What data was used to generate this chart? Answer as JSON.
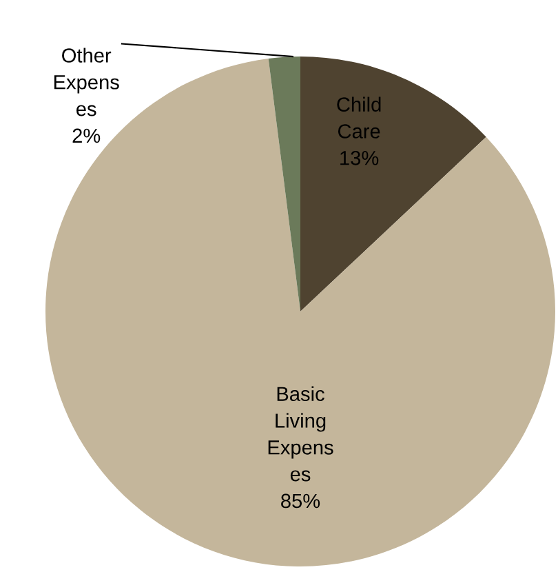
{
  "chart_data": {
    "type": "pie",
    "categories": [
      "Child Care",
      "Basic Living Expenses",
      "Other Expenses"
    ],
    "values": [
      13,
      85,
      2
    ],
    "value_labels": [
      "13%",
      "85%",
      "2%"
    ],
    "colors": [
      "#4f4330",
      "#c4b69b",
      "#6b7a5a"
    ],
    "legend": false
  }
}
